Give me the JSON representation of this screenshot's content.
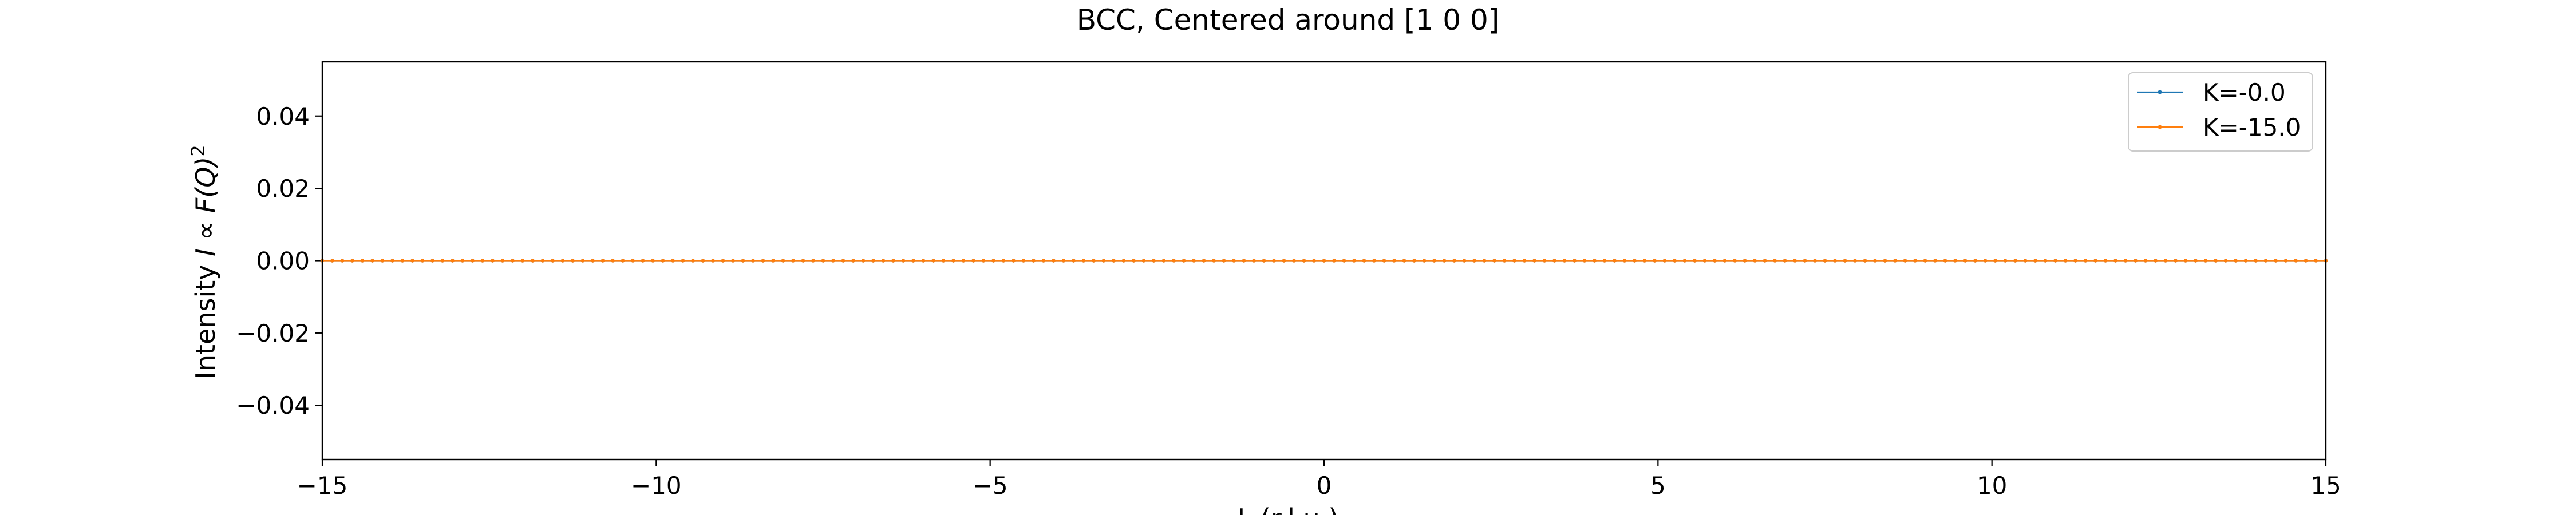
{
  "chart_data": {
    "type": "line",
    "title": "BCC, Centered around [1 0 0]",
    "xlabel": "L (r.l.u.)",
    "ylabel_prefix": "Intensity ",
    "ylabel_math": "I ∝ F(Q)",
    "ylabel_sup": "2",
    "xlim": [
      -15,
      15
    ],
    "ylim": [
      -0.055,
      0.055
    ],
    "x_ticks": [
      -15,
      -10,
      -5,
      0,
      5,
      10,
      15
    ],
    "x_tick_labels": [
      "−15",
      "−10",
      "−5",
      "0",
      "5",
      "10",
      "15"
    ],
    "y_ticks": [
      -0.04,
      -0.02,
      0.0,
      0.02,
      0.04
    ],
    "y_tick_labels": [
      "−0.04",
      "−0.02",
      "0.00",
      "0.02",
      "0.04"
    ],
    "grid": false,
    "legend_position": "upper-right",
    "x_sampling": {
      "start": -15,
      "stop": 15,
      "step": 0.15
    },
    "series": [
      {
        "name": "K=-0.0",
        "color": "#1f77b4",
        "y_constant": 0.0
      },
      {
        "name": "K=-15.0",
        "color": "#ff7f0e",
        "y_constant": 0.0
      }
    ]
  }
}
